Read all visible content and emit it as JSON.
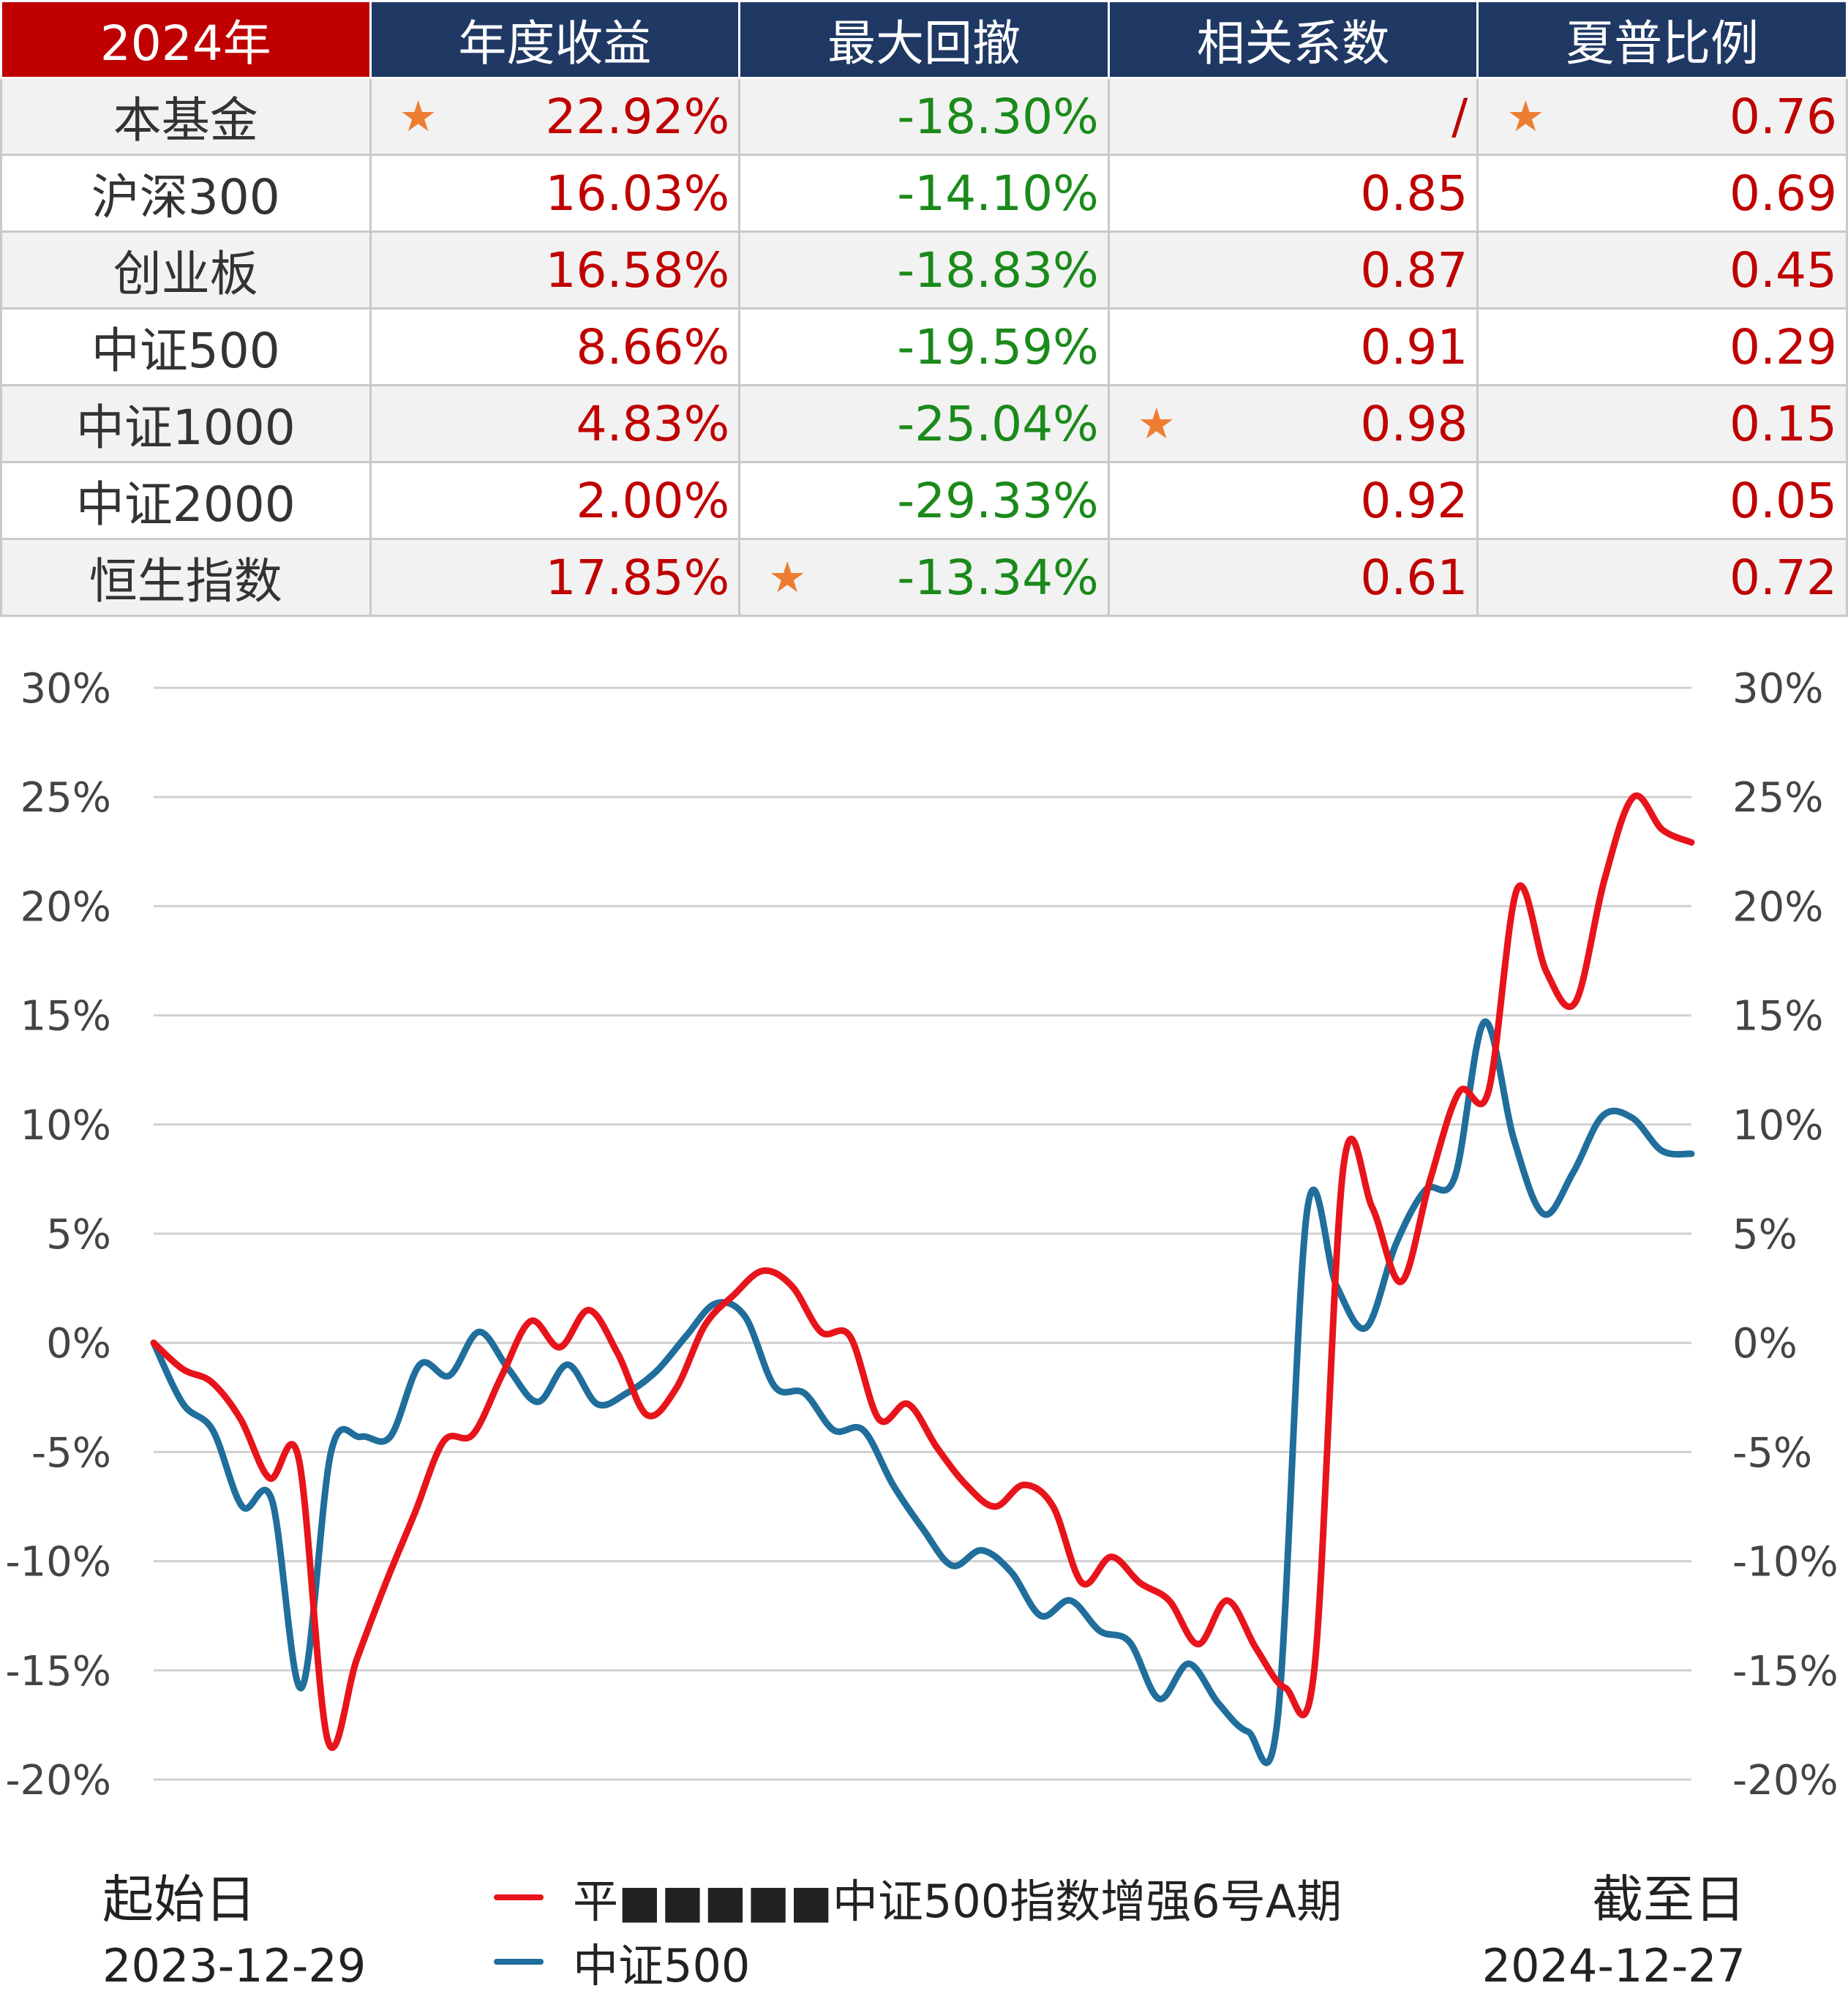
{
  "table": {
    "corner": "2024年",
    "columns": [
      "年度收益",
      "最大回撤",
      "相关系数",
      "夏普比例"
    ],
    "rows": [
      {
        "name": "本基金",
        "annual_return": "22.92%",
        "max_drawdown": "-18.30%",
        "correlation": "/",
        "sharpe": "0.76",
        "stars": [
          "annual_return",
          "sharpe"
        ]
      },
      {
        "name": "沪深300",
        "annual_return": "16.03%",
        "max_drawdown": "-14.10%",
        "correlation": "0.85",
        "sharpe": "0.69",
        "stars": []
      },
      {
        "name": "创业板",
        "annual_return": "16.58%",
        "max_drawdown": "-18.83%",
        "correlation": "0.87",
        "sharpe": "0.45",
        "stars": []
      },
      {
        "name": "中证500",
        "annual_return": "8.66%",
        "max_drawdown": "-19.59%",
        "correlation": "0.91",
        "sharpe": "0.29",
        "stars": []
      },
      {
        "name": "中证1000",
        "annual_return": "4.83%",
        "max_drawdown": "-25.04%",
        "correlation": "0.98",
        "sharpe": "0.15",
        "stars": [
          "correlation"
        ]
      },
      {
        "name": "中证2000",
        "annual_return": "2.00%",
        "max_drawdown": "-29.33%",
        "correlation": "0.92",
        "sharpe": "0.05",
        "stars": []
      },
      {
        "name": "恒生指数",
        "annual_return": "17.85%",
        "max_drawdown": "-13.34%",
        "correlation": "0.61",
        "sharpe": "0.72",
        "stars": [
          "max_drawdown"
        ]
      }
    ],
    "star_glyph": "★",
    "colors": {
      "header_bg": "#1f3864",
      "corner_bg": "#c00000",
      "return_text": "#c00000",
      "drawdown_text": "#1a8a1a",
      "star": "#ed7d31"
    }
  },
  "footer": {
    "start_label": "起始日",
    "start_date": "2023-12-29",
    "end_label": "截至日",
    "end_date": "2024-12-27"
  },
  "chart_data": {
    "type": "line",
    "y_ticks": [
      "30%",
      "25%",
      "20%",
      "15%",
      "10%",
      "5%",
      "0%",
      "-5%",
      "-10%",
      "-15%",
      "-20%"
    ],
    "ylim": [
      -20,
      30
    ],
    "grid": true,
    "y_axis_both_sides": true,
    "series": [
      {
        "name": "平■■■■■中证500指数增强6号A期",
        "color": "#e8141b",
        "values": [
          0,
          -1.2,
          -1.8,
          -3.5,
          -6.2,
          -5.3,
          -18.2,
          -14.5,
          -11,
          -7.8,
          -4.5,
          -4.2,
          -1.5,
          1,
          -0.2,
          1.5,
          -0.5,
          -3.3,
          -2.1,
          0.8,
          2.2,
          3.3,
          2.6,
          0.5,
          0.3,
          -3.5,
          -2.8,
          -4.8,
          -6.5,
          -7.5,
          -6.5,
          -7.5,
          -11,
          -9.8,
          -11,
          -11.8,
          -13.8,
          -11.8,
          -14,
          -15.8,
          -15,
          8,
          6.2,
          2.8,
          7.5,
          11.5,
          11.5,
          20.8,
          17,
          15.6,
          21.2,
          25,
          23.5,
          22.92
        ]
      },
      {
        "name": "中证500",
        "color": "#1f6e9c",
        "values": [
          0,
          -2.8,
          -4,
          -7.5,
          -7.2,
          -15.8,
          -5,
          -4.3,
          -4.3,
          -1,
          -1.5,
          0.5,
          -1.2,
          -2.7,
          -1,
          -2.8,
          -2.3,
          -1.3,
          0.3,
          1.8,
          1.2,
          -2,
          -2.3,
          -4,
          -4,
          -6.5,
          -8.5,
          -10.2,
          -9.5,
          -10.5,
          -12.5,
          -11.8,
          -13.2,
          -13.7,
          -16.3,
          -14.7,
          -16.5,
          -17.8,
          -17.3,
          6,
          2.6,
          0.7,
          4.5,
          7,
          7.6,
          14.7,
          9.3,
          5.9,
          7.8,
          10.4,
          10.3,
          8.8,
          8.66
        ]
      }
    ]
  }
}
